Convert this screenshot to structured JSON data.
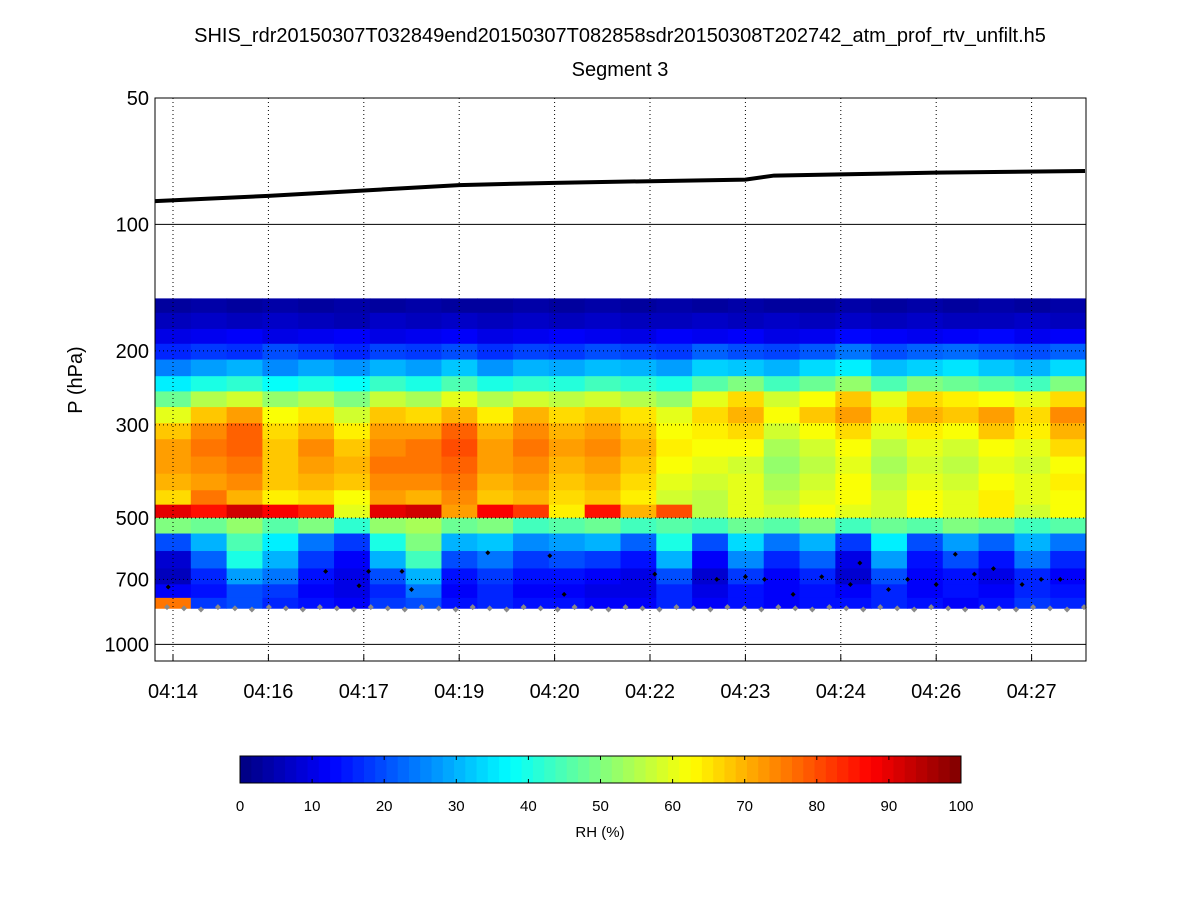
{
  "chart_data": {
    "type": "heatmap",
    "title": "SHIS_rdr20150307T032849end20150307T082858sdr20150308T202742_atm_prof_rtv_unfilt.h5",
    "subtitle": "Segment 3",
    "ylabel": "P (hPa)",
    "yscale": "log",
    "ylim": [
      50,
      1095
    ],
    "y_ticks": [
      50,
      100,
      200,
      300,
      500,
      700,
      1000
    ],
    "y_tick_labels": [
      "50",
      "100",
      "200",
      "300",
      "500",
      "700",
      "1000"
    ],
    "x_tick_labels": [
      "04:14",
      "04:16",
      "04:17",
      "04:19",
      "04:20",
      "04:22",
      "04:23",
      "04:24",
      "04:26",
      "04:27"
    ],
    "x_units": "tick index",
    "xlim": [
      -0.19,
      9.56
    ],
    "grid": "dotted",
    "colorbar": {
      "label": "RH (%)",
      "range": [
        0,
        100
      ],
      "ticks": [
        "0",
        "10",
        "20",
        "30",
        "40",
        "50",
        "60",
        "70",
        "80",
        "90",
        "100"
      ],
      "colormap": "jet",
      "placement": "bottom"
    },
    "levels_hPa": [
      155,
      170,
      185,
      200,
      220,
      240,
      260,
      285,
      310,
      340,
      375,
      410,
      450,
      480,
      520,
      570,
      630,
      690,
      750,
      800
    ],
    "level_bounds_hPa": [
      150,
      820
    ],
    "rh": [
      [
        3,
        4,
        3,
        4,
        3,
        4,
        3,
        4,
        3,
        3,
        4,
        3,
        4,
        3,
        4,
        3,
        4,
        3,
        3,
        4,
        3,
        4,
        3,
        4,
        3,
        4
      ],
      [
        6,
        7,
        6,
        7,
        6,
        5,
        7,
        6,
        7,
        6,
        7,
        6,
        7,
        6,
        6,
        7,
        6,
        7,
        6,
        7,
        6,
        7,
        6,
        6,
        7,
        6
      ],
      [
        10,
        11,
        12,
        10,
        11,
        12,
        10,
        11,
        12,
        10,
        11,
        12,
        11,
        10,
        12,
        11,
        12,
        10,
        11,
        13,
        12,
        11,
        12,
        13,
        11,
        12
      ],
      [
        16,
        18,
        17,
        20,
        18,
        16,
        19,
        18,
        20,
        17,
        19,
        18,
        20,
        19,
        18,
        22,
        20,
        19,
        21,
        24,
        20,
        22,
        23,
        21,
        20,
        22
      ],
      [
        25,
        28,
        30,
        26,
        29,
        27,
        30,
        28,
        32,
        27,
        30,
        29,
        31,
        30,
        28,
        33,
        32,
        30,
        34,
        36,
        31,
        33,
        35,
        32,
        30,
        34
      ],
      [
        36,
        40,
        42,
        38,
        40,
        38,
        43,
        40,
        45,
        40,
        42,
        41,
        44,
        42,
        40,
        46,
        50,
        44,
        48,
        52,
        45,
        50,
        48,
        46,
        44,
        50
      ],
      [
        48,
        55,
        58,
        52,
        55,
        50,
        57,
        54,
        60,
        55,
        58,
        56,
        58,
        55,
        52,
        60,
        66,
        58,
        62,
        68,
        60,
        66,
        64,
        62,
        60,
        66
      ],
      [
        60,
        68,
        72,
        62,
        65,
        58,
        68,
        66,
        70,
        64,
        70,
        66,
        68,
        65,
        60,
        66,
        70,
        62,
        68,
        72,
        65,
        70,
        68,
        72,
        66,
        74
      ],
      [
        68,
        74,
        78,
        66,
        70,
        64,
        72,
        72,
        78,
        70,
        74,
        70,
        72,
        68,
        62,
        64,
        66,
        58,
        62,
        66,
        60,
        64,
        62,
        68,
        64,
        70
      ],
      [
        72,
        76,
        78,
        68,
        74,
        68,
        74,
        76,
        80,
        72,
        76,
        72,
        74,
        70,
        64,
        62,
        62,
        54,
        58,
        62,
        56,
        60,
        58,
        62,
        60,
        66
      ],
      [
        72,
        74,
        76,
        68,
        72,
        70,
        76,
        76,
        78,
        72,
        74,
        70,
        72,
        68,
        62,
        60,
        58,
        52,
        56,
        60,
        54,
        58,
        56,
        60,
        58,
        62
      ],
      [
        70,
        72,
        74,
        68,
        70,
        68,
        74,
        74,
        76,
        70,
        72,
        68,
        70,
        66,
        60,
        58,
        60,
        54,
        58,
        62,
        56,
        60,
        58,
        62,
        60,
        64
      ],
      [
        66,
        76,
        70,
        64,
        66,
        62,
        72,
        70,
        74,
        68,
        70,
        66,
        68,
        64,
        58,
        56,
        60,
        56,
        60,
        62,
        58,
        62,
        60,
        64,
        60,
        62
      ],
      [
        90,
        86,
        92,
        88,
        84,
        60,
        90,
        92,
        72,
        88,
        82,
        64,
        86,
        70,
        80,
        56,
        60,
        58,
        62,
        60,
        58,
        62,
        60,
        64,
        58,
        62
      ],
      [
        50,
        48,
        52,
        46,
        50,
        42,
        52,
        54,
        48,
        50,
        44,
        46,
        48,
        44,
        46,
        44,
        48,
        46,
        50,
        44,
        48,
        46,
        50,
        48,
        44,
        46
      ],
      [
        20,
        30,
        45,
        36,
        24,
        18,
        40,
        50,
        30,
        32,
        26,
        28,
        30,
        22,
        40,
        20,
        34,
        24,
        30,
        18,
        36,
        20,
        28,
        22,
        30,
        24
      ],
      [
        8,
        22,
        40,
        30,
        18,
        12,
        30,
        44,
        20,
        24,
        18,
        20,
        18,
        14,
        30,
        12,
        26,
        16,
        22,
        10,
        28,
        14,
        20,
        14,
        24,
        16
      ],
      [
        6,
        16,
        28,
        24,
        14,
        10,
        20,
        30,
        14,
        18,
        14,
        14,
        12,
        10,
        20,
        8,
        18,
        12,
        16,
        8,
        20,
        12,
        14,
        10,
        16,
        12
      ],
      [
        12,
        14,
        20,
        18,
        12,
        10,
        16,
        24,
        12,
        16,
        12,
        12,
        10,
        10,
        16,
        10,
        14,
        12,
        14,
        12,
        16,
        12,
        14,
        12,
        16,
        14
      ],
      [
        76,
        18,
        20,
        16,
        14,
        12,
        18,
        20,
        14,
        16,
        14,
        14,
        12,
        12,
        16,
        12,
        14,
        12,
        14,
        14,
        16,
        14,
        12,
        14,
        18,
        16
      ]
    ],
    "altitude_line": {
      "x": [
        -0.19,
        1,
        3,
        4,
        6,
        6.3,
        7,
        8,
        9.56
      ],
      "p_hPa": [
        88,
        85.5,
        80.6,
        79.6,
        78.2,
        76.5,
        76,
        75.3,
        74.6
      ]
    },
    "surface_points": {
      "p_hPa": 815,
      "count": 55
    },
    "cloud_top_points": [
      [
        -0.05,
        730
      ],
      [
        1.6,
        670
      ],
      [
        1.95,
        725
      ],
      [
        2.05,
        670
      ],
      [
        2.4,
        670
      ],
      [
        2.5,
        740
      ],
      [
        3.3,
        605
      ],
      [
        3.95,
        615
      ],
      [
        4.1,
        760
      ],
      [
        5.05,
        680
      ],
      [
        5.7,
        700
      ],
      [
        6.0,
        690
      ],
      [
        6.2,
        700
      ],
      [
        6.5,
        760
      ],
      [
        6.8,
        690
      ],
      [
        7.1,
        720
      ],
      [
        7.2,
        640
      ],
      [
        7.5,
        740
      ],
      [
        7.7,
        700
      ],
      [
        8.0,
        720
      ],
      [
        8.2,
        610
      ],
      [
        8.4,
        680
      ],
      [
        8.6,
        660
      ],
      [
        8.9,
        720
      ],
      [
        9.1,
        700
      ],
      [
        9.3,
        700
      ]
    ]
  }
}
